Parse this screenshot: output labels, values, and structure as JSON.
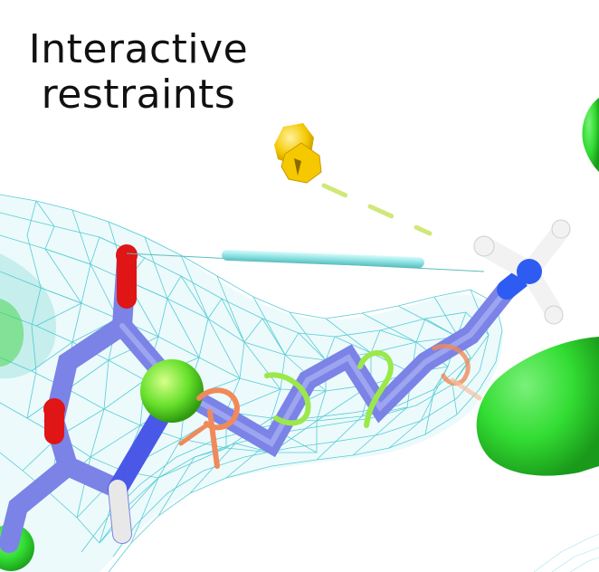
{
  "title": {
    "line1": "Interactive",
    "line2": "restraints"
  },
  "colors": {
    "background": "#ffffff",
    "density_mesh": "#3cc4cf",
    "density_surface": "#c9f1f3",
    "carbon": "#7b83e6",
    "oxygen": "#e01515",
    "nitrogen": "#2e5cf2",
    "hydrogen": "#f2f2f2",
    "distance_restraint": "#8fe3e3",
    "pointer_restraint": "#cfe878",
    "blob": "#33dd33",
    "torsion_ring_green": "#9be84a",
    "torsion_ring_orange": "#f08a5a",
    "pin": "#f5c800"
  },
  "icons": {
    "pin": "pushpin-icon"
  }
}
